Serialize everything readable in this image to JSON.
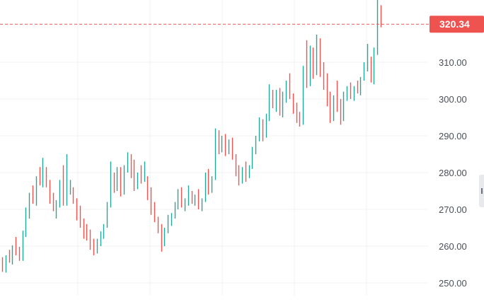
{
  "chart_data": {
    "type": "ohlc",
    "yticks": [
      "250.00",
      "260.00",
      "270.00",
      "280.00",
      "290.00",
      "300.00",
      "310.00"
    ],
    "ylim": [
      247,
      328
    ],
    "grid": true,
    "last_price": 320.34,
    "last_price_label": "320.34",
    "colors": {
      "up": "#26a69a",
      "down": "#ef5350",
      "price_line": "#ef5350",
      "grid": "#f0f1f3",
      "text": "#4a4f5a"
    },
    "bars": [
      [
        256.0,
        257.0,
        253.0,
        254.0
      ],
      [
        254.0,
        257.5,
        252.8,
        257.0
      ],
      [
        257.0,
        259.0,
        255.5,
        255.8
      ],
      [
        255.8,
        260.2,
        255.0,
        259.5
      ],
      [
        259.5,
        262.5,
        257.5,
        258.0
      ],
      [
        258.0,
        259.8,
        256.0,
        256.5
      ],
      [
        256.5,
        264.2,
        256.0,
        263.0
      ],
      [
        263.0,
        270.5,
        262.5,
        270.0
      ],
      [
        270.0,
        274.5,
        267.5,
        273.0
      ],
      [
        273.0,
        276.5,
        271.5,
        272.0
      ],
      [
        272.0,
        279.0,
        271.0,
        278.0
      ],
      [
        278.0,
        281.5,
        276.5,
        277.0
      ],
      [
        277.0,
        284.0,
        276.0,
        283.0
      ],
      [
        283.0,
        281.5,
        276.0,
        277.0
      ],
      [
        277.0,
        278.0,
        271.5,
        272.0
      ],
      [
        272.0,
        274.5,
        269.5,
        270.5
      ],
      [
        270.5,
        272.5,
        267.5,
        271.5
      ],
      [
        271.5,
        278.0,
        270.5,
        277.5
      ],
      [
        277.5,
        282.0,
        271.0,
        272.5
      ],
      [
        272.5,
        285.0,
        271.0,
        275.0
      ],
      [
        275.0,
        278.0,
        274.0,
        277.5
      ],
      [
        277.5,
        276.0,
        271.5,
        272.5
      ],
      [
        272.5,
        273.0,
        267.0,
        269.0
      ],
      [
        269.0,
        271.0,
        265.0,
        266.5
      ],
      [
        266.5,
        267.5,
        262.0,
        264.0
      ],
      [
        264.0,
        266.0,
        261.5,
        262.5
      ],
      [
        262.5,
        264.5,
        259.0,
        261.0
      ],
      [
        261.0,
        262.0,
        257.5,
        259.0
      ],
      [
        259.0,
        262.0,
        258.0,
        261.0
      ],
      [
        261.0,
        264.0,
        260.0,
        263.0
      ],
      [
        263.0,
        266.0,
        262.0,
        265.5
      ],
      [
        265.5,
        272.0,
        265.0,
        271.5
      ],
      [
        271.5,
        283.0,
        270.5,
        282.0
      ],
      [
        282.0,
        280.0,
        274.5,
        276.0
      ],
      [
        276.0,
        281.5,
        275.0,
        278.5
      ],
      [
        278.5,
        281.5,
        273.5,
        274.5
      ],
      [
        274.5,
        282.0,
        274.0,
        281.0
      ],
      [
        281.0,
        285.5,
        280.0,
        284.5
      ],
      [
        284.5,
        285.0,
        278.5,
        280.0
      ],
      [
        280.0,
        283.5,
        275.0,
        276.5
      ],
      [
        276.5,
        280.0,
        275.5,
        279.5
      ],
      [
        279.5,
        282.0,
        277.0,
        278.0
      ],
      [
        278.0,
        283.0,
        277.5,
        282.0
      ],
      [
        282.0,
        279.0,
        272.5,
        274.0
      ],
      [
        274.0,
        276.0,
        268.5,
        269.5
      ],
      [
        269.5,
        272.0,
        266.5,
        267.0
      ],
      [
        267.0,
        268.0,
        263.5,
        264.0
      ],
      [
        264.0,
        266.0,
        258.5,
        261.0
      ],
      [
        261.0,
        265.0,
        260.0,
        264.5
      ],
      [
        264.5,
        268.5,
        263.5,
        266.5
      ],
      [
        266.5,
        269.0,
        265.5,
        268.5
      ],
      [
        268.5,
        272.0,
        267.5,
        271.0
      ],
      [
        271.0,
        275.5,
        270.0,
        274.5
      ],
      [
        274.5,
        276.0,
        270.5,
        271.5
      ],
      [
        271.5,
        273.0,
        269.5,
        272.0
      ],
      [
        272.0,
        276.5,
        271.0,
        276.0
      ],
      [
        276.0,
        275.0,
        271.5,
        272.5
      ],
      [
        272.5,
        274.0,
        271.0,
        273.5
      ],
      [
        273.5,
        275.5,
        270.0,
        271.0
      ],
      [
        271.0,
        273.0,
        269.5,
        272.5
      ],
      [
        272.5,
        280.0,
        272.0,
        279.0
      ],
      [
        279.0,
        281.0,
        274.0,
        275.5
      ],
      [
        275.5,
        279.0,
        274.5,
        278.5
      ],
      [
        278.5,
        292.0,
        278.0,
        290.5
      ],
      [
        290.5,
        291.5,
        285.0,
        286.0
      ],
      [
        286.0,
        290.0,
        285.5,
        289.5
      ],
      [
        289.5,
        290.5,
        284.5,
        285.5
      ],
      [
        285.5,
        289.0,
        285.0,
        288.0
      ],
      [
        288.0,
        289.5,
        283.5,
        284.0
      ],
      [
        284.0,
        285.0,
        279.0,
        280.0
      ],
      [
        280.0,
        282.0,
        276.5,
        277.5
      ],
      [
        277.5,
        281.5,
        277.0,
        281.0
      ],
      [
        281.0,
        283.0,
        277.5,
        279.0
      ],
      [
        279.0,
        282.0,
        278.5,
        281.5
      ],
      [
        281.5,
        287.0,
        281.0,
        286.0
      ],
      [
        286.0,
        290.0,
        285.0,
        289.0
      ],
      [
        289.0,
        295.0,
        288.5,
        293.5
      ],
      [
        293.5,
        294.5,
        288.5,
        290.0
      ],
      [
        290.0,
        296.0,
        289.5,
        294.5
      ],
      [
        294.5,
        304.0,
        294.0,
        302.0
      ],
      [
        302.0,
        302.5,
        297.5,
        298.5
      ],
      [
        298.5,
        302.5,
        296.5,
        301.5
      ],
      [
        301.5,
        303.0,
        295.5,
        296.5
      ],
      [
        296.5,
        302.0,
        295.0,
        300.5
      ],
      [
        300.5,
        305.0,
        299.0,
        304.0
      ],
      [
        304.0,
        307.0,
        300.0,
        301.0
      ],
      [
        301.0,
        301.5,
        296.0,
        297.5
      ],
      [
        297.5,
        299.0,
        293.5,
        295.0
      ],
      [
        295.0,
        296.5,
        292.5,
        293.5
      ],
      [
        293.5,
        309.0,
        293.0,
        307.5
      ],
      [
        307.5,
        316.0,
        303.0,
        304.0
      ],
      [
        304.0,
        314.5,
        303.5,
        313.0
      ],
      [
        313.0,
        314.0,
        305.5,
        307.0
      ],
      [
        307.0,
        317.5,
        306.5,
        315.5
      ],
      [
        315.5,
        316.5,
        306.0,
        307.5
      ],
      [
        307.5,
        310.0,
        302.5,
        303.5
      ],
      [
        303.5,
        307.0,
        298.0,
        299.5
      ],
      [
        299.5,
        302.0,
        293.5,
        295.5
      ],
      [
        295.5,
        301.0,
        294.0,
        300.5
      ],
      [
        300.5,
        305.0,
        296.5,
        298.0
      ],
      [
        298.0,
        300.0,
        293.0,
        294.5
      ],
      [
        294.5,
        302.0,
        294.0,
        301.0
      ],
      [
        301.0,
        303.5,
        299.5,
        302.5
      ],
      [
        302.5,
        304.5,
        300.0,
        300.5
      ],
      [
        300.5,
        303.5,
        299.5,
        303.0
      ],
      [
        303.0,
        305.0,
        301.5,
        302.0
      ],
      [
        302.0,
        306.0,
        301.0,
        305.5
      ],
      [
        305.5,
        310.0,
        305.0,
        309.0
      ],
      [
        309.0,
        315.0,
        307.5,
        313.5
      ],
      [
        313.5,
        311.5,
        304.5,
        305.5
      ],
      [
        305.5,
        314.0,
        304.0,
        313.0
      ],
      [
        313.0,
        327.5,
        312.0,
        325.0
      ],
      [
        325.0,
        325.5,
        319.5,
        320.34
      ]
    ]
  }
}
